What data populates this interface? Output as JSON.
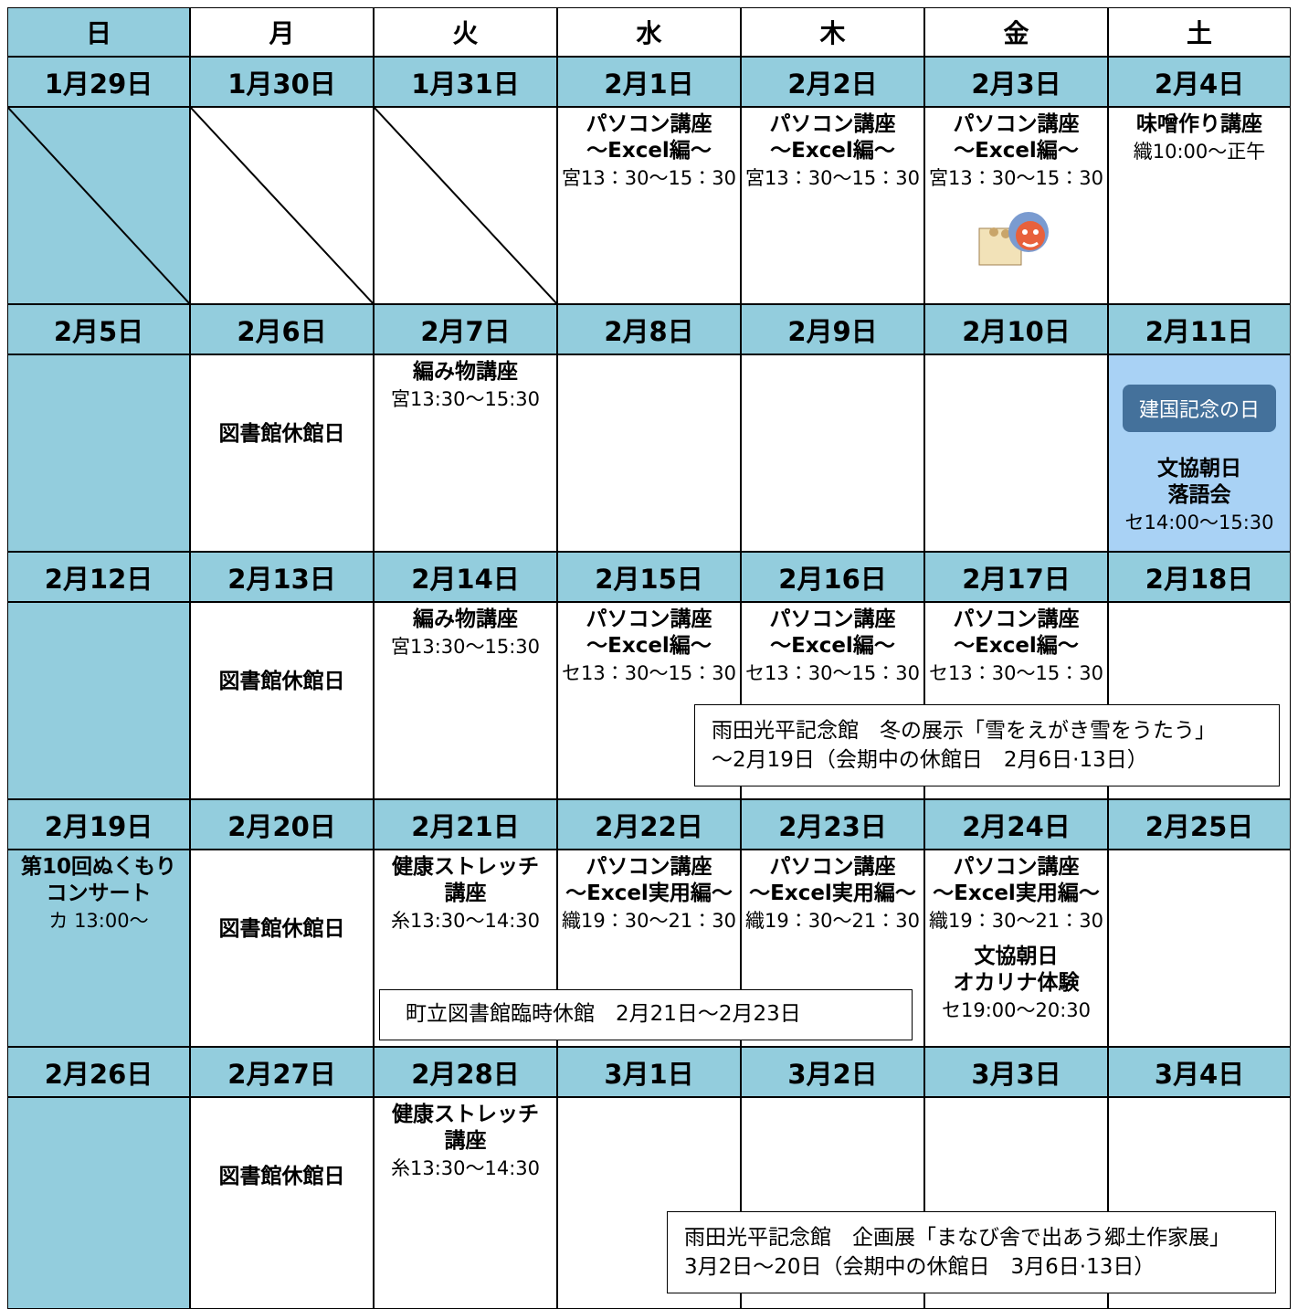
{
  "weekdays": [
    "日",
    "月",
    "火",
    "水",
    "木",
    "金",
    "土"
  ],
  "weeks": [
    {
      "dates": [
        "1月29日",
        "1月30日",
        "1月31日",
        "2月1日",
        "2月2日",
        "2月3日",
        "2月4日"
      ],
      "cells": [
        null,
        null,
        null,
        [
          {
            "title": [
              "パソコン講座",
              "〜Excel編〜"
            ],
            "time": "宮13：30〜15：30"
          }
        ],
        [
          {
            "title": [
              "パソコン講座",
              "〜Excel編〜"
            ],
            "time": "宮13：30〜15：30"
          }
        ],
        [
          {
            "title": [
              "パソコン講座",
              "〜Excel編〜"
            ],
            "time": "宮13：30〜15：30"
          }
        ],
        [
          {
            "title": [
              "味噌作り講座"
            ],
            "time": "織10:00〜正午"
          }
        ]
      ]
    },
    {
      "dates": [
        "2月5日",
        "2月6日",
        "2月7日",
        "2月8日",
        "2月9日",
        "2月10日",
        "2月11日"
      ],
      "cells": [
        [],
        [
          {
            "title": [
              "図書館休館日"
            ]
          }
        ],
        [
          {
            "title": [
              "編み物講座"
            ],
            "time": "宮13:30〜15:30"
          }
        ],
        [],
        [],
        [],
        [
          {
            "badge": "建国記念の日"
          },
          {
            "title": [
              "文協朝日",
              "落語会"
            ],
            "time": "セ14:00〜15:30"
          }
        ]
      ]
    },
    {
      "dates": [
        "2月12日",
        "2月13日",
        "2月14日",
        "2月15日",
        "2月16日",
        "2月17日",
        "2月18日"
      ],
      "cells": [
        [],
        [
          {
            "title": [
              "図書館休館日"
            ]
          }
        ],
        [
          {
            "title": [
              "編み物講座"
            ],
            "time": "宮13:30〜15:30"
          }
        ],
        [
          {
            "title": [
              "パソコン講座",
              "〜Excel編〜"
            ],
            "time": "セ13：30〜15：30"
          }
        ],
        [
          {
            "title": [
              "パソコン講座",
              "〜Excel編〜"
            ],
            "time": "セ13：30〜15：30"
          }
        ],
        [
          {
            "title": [
              "パソコン講座",
              "〜Excel編〜"
            ],
            "time": "セ13：30〜15：30"
          }
        ],
        []
      ],
      "banner": [
        "雨田光平記念館　冬の展示「雪をえがき雪をうたう」",
        "〜2月19日（会期中の休館日　2月6日·13日）"
      ]
    },
    {
      "dates": [
        "2月19日",
        "2月20日",
        "2月21日",
        "2月22日",
        "2月23日",
        "2月24日",
        "2月25日"
      ],
      "cells": [
        [
          {
            "title": [
              "第10回ぬくもり",
              "コンサート"
            ],
            "time": "カ 13:00〜"
          }
        ],
        [
          {
            "title": [
              "図書館休館日"
            ]
          }
        ],
        [
          {
            "title": [
              "健康ストレッチ",
              "講座"
            ],
            "time": "糸13:30〜14:30"
          }
        ],
        [
          {
            "title": [
              "パソコン講座",
              "〜Excel実用編〜"
            ],
            "time": "織19：30〜21：30"
          }
        ],
        [
          {
            "title": [
              "パソコン講座",
              "〜Excel実用編〜"
            ],
            "time": "織19：30〜21：30"
          }
        ],
        [
          {
            "title": [
              "パソコン講座",
              "〜Excel実用編〜"
            ],
            "time": "織19：30〜21：30"
          },
          {
            "title": [
              "文協朝日",
              "オカリナ体験"
            ],
            "time": "セ19:00〜20:30"
          }
        ],
        []
      ],
      "banner": [
        "町立図書館臨時休館　2月21日〜2月23日"
      ]
    },
    {
      "dates": [
        "2月26日",
        "2月27日",
        "2月28日",
        "3月1日",
        "3月2日",
        "3月3日",
        "3月4日"
      ],
      "cells": [
        [],
        [
          {
            "title": [
              "図書館休館日"
            ]
          }
        ],
        [
          {
            "title": [
              "健康ストレッチ",
              "講座"
            ],
            "time": "糸13:30〜14:30"
          }
        ],
        [],
        [],
        [],
        []
      ],
      "banner": [
        "雨田光平記念館　企画展「まなび舎で出あう郷土作家展」",
        "3月2日〜20日（会期中の休館日　3月6日·13日）"
      ]
    }
  ]
}
